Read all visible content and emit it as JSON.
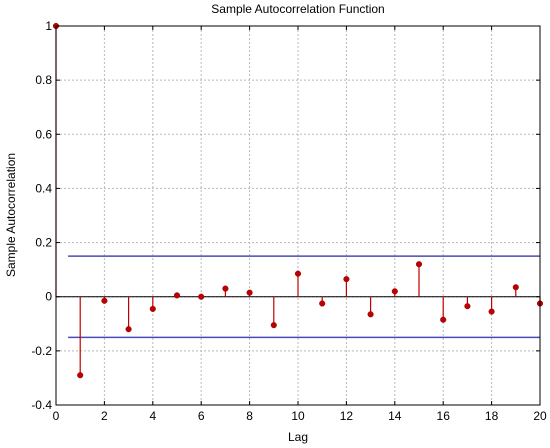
{
  "chart_data": {
    "type": "stem",
    "title": "Sample Autocorrelation Function",
    "xlabel": "Lag",
    "ylabel": "Sample Autocorrelation",
    "xlim": [
      0,
      20
    ],
    "ylim": [
      -0.4,
      1
    ],
    "xticks": [
      0,
      2,
      4,
      6,
      8,
      10,
      12,
      14,
      16,
      18,
      20
    ],
    "yticks": [
      -0.4,
      -0.2,
      0,
      0.2,
      0.4,
      0.6,
      0.8,
      1
    ],
    "grid": true,
    "confidence_bounds": [
      0.15,
      -0.15
    ],
    "series": [
      {
        "x": [
          0,
          1,
          2,
          3,
          4,
          5,
          6,
          7,
          8,
          9,
          10,
          11,
          12,
          13,
          14,
          15,
          16,
          17,
          18,
          19,
          20
        ],
        "values": [
          1.0,
          -0.29,
          -0.015,
          -0.12,
          -0.045,
          0.005,
          0.0,
          0.03,
          0.015,
          -0.105,
          0.085,
          -0.025,
          0.065,
          -0.065,
          0.02,
          0.12,
          -0.085,
          -0.035,
          -0.055,
          0.035,
          -0.025
        ]
      }
    ],
    "colors": {
      "stem": "#c00000",
      "bounds": "#4a4ab8"
    }
  }
}
